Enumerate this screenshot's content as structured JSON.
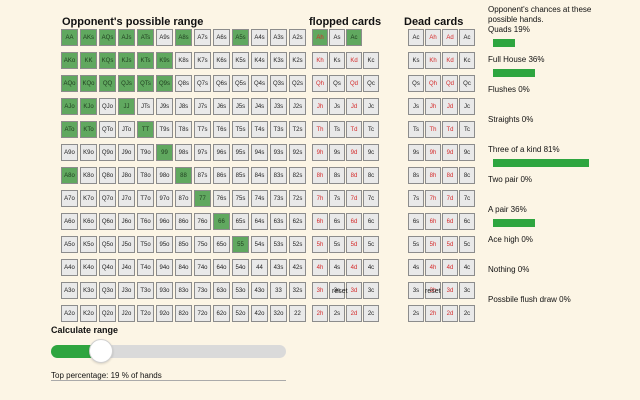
{
  "range_panel": {
    "title": "Opponent's possible range",
    "ranks": [
      "A",
      "K",
      "Q",
      "J",
      "T",
      "9",
      "8",
      "7",
      "6",
      "5",
      "4",
      "3",
      "2"
    ],
    "selected": [
      "AA",
      "AKs",
      "AQs",
      "AJs",
      "ATs",
      "A8s",
      "A5s",
      "AKo",
      "KK",
      "KQs",
      "KJs",
      "KTs",
      "K9s",
      "AQo",
      "KQo",
      "QQ",
      "QJs",
      "QTs",
      "Q9s",
      "AJo",
      "KJo",
      "JJ",
      "ATo",
      "KTo",
      "TT",
      "99",
      "A8o",
      "88",
      "77",
      "66",
      "55"
    ]
  },
  "flopped_panel": {
    "title": "flopped cards",
    "reset_label": "reset",
    "rows": [
      [
        "Ah",
        "As",
        "Ac"
      ],
      [
        "Kh",
        "Ks",
        "Kd",
        "Kc"
      ],
      [
        "Qh",
        "Qs",
        "Qd",
        "Qc"
      ],
      [
        "Jh",
        "Js",
        "Jd",
        "Jc"
      ],
      [
        "Th",
        "Ts",
        "Td",
        "Tc"
      ],
      [
        "9h",
        "9s",
        "9d",
        "9c"
      ],
      [
        "8h",
        "8s",
        "8d",
        "8c"
      ],
      [
        "7h",
        "7s",
        "7d",
        "7c"
      ],
      [
        "6h",
        "6s",
        "6d",
        "6c"
      ],
      [
        "5h",
        "5s",
        "5d",
        "5c"
      ],
      [
        "4h",
        "4s",
        "4d",
        "4c"
      ],
      [
        "3h",
        "3s",
        "3d",
        "3c"
      ],
      [
        "2h",
        "2s",
        "2d",
        "2c"
      ]
    ],
    "selected": [
      "Ah",
      "Ac"
    ]
  },
  "dead_panel": {
    "title": "Dead cards",
    "reset_label": "reset",
    "rows": [
      [
        "Ac",
        "Ah",
        "Ad",
        "Ac"
      ],
      [
        "Ks",
        "Kh",
        "Kd",
        "Kc"
      ],
      [
        "Qs",
        "Qh",
        "Qd",
        "Qc"
      ],
      [
        "Js",
        "Jh",
        "Jd",
        "Jc"
      ],
      [
        "Ts",
        "Th",
        "Td",
        "Tc"
      ],
      [
        "9s",
        "9h",
        "9d",
        "9c"
      ],
      [
        "8s",
        "8h",
        "8d",
        "8c"
      ],
      [
        "7s",
        "7h",
        "7d",
        "7c"
      ],
      [
        "6s",
        "6h",
        "6d",
        "6c"
      ],
      [
        "5s",
        "5h",
        "5d",
        "5c"
      ],
      [
        "4s",
        "4h",
        "4d",
        "4c"
      ],
      [
        "3s",
        "3h",
        "3d",
        "3c"
      ],
      [
        "2s",
        "2h",
        "2d",
        "2c"
      ]
    ]
  },
  "stats": {
    "heading": "Opponent's chances at these possible hands.",
    "items": [
      {
        "label": "Quads 19%",
        "percent": 19
      },
      {
        "label": "Full House 36%",
        "percent": 36
      },
      {
        "label": "Flushes 0%",
        "percent": 0
      },
      {
        "label": "Straights 0%",
        "percent": 0
      },
      {
        "label": "Three of a kind 81%",
        "percent": 81
      },
      {
        "label": "Two pair 0%",
        "percent": 0
      },
      {
        "label": "A pair 36%",
        "percent": 36
      },
      {
        "label": "Ace high 0%",
        "percent": 0
      },
      {
        "label": "Nothing 0%",
        "percent": 0
      },
      {
        "label": "Possbile flush draw 0%",
        "percent": 0
      }
    ]
  },
  "calculate": {
    "title": "Calculate range",
    "slider_value_percent": 19,
    "top_percentage_text": "Top percentage: 19 % of hands"
  },
  "colors": {
    "selected_cell": "#60a85f",
    "bar": "#2ea53f",
    "red_suit": "#d42a2a",
    "background": "#fcf5e5"
  }
}
